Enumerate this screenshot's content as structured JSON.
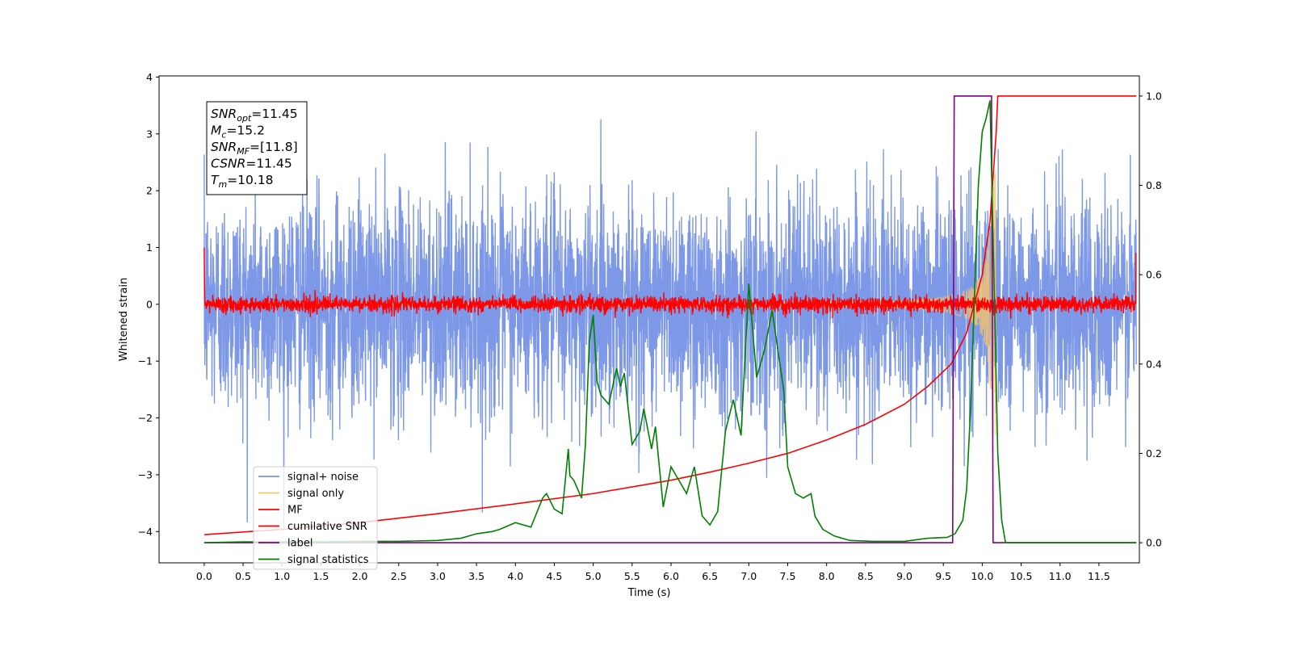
{
  "chart_data": {
    "type": "line",
    "title": "",
    "xlabel": "Time (s)",
    "ylabel": "Whitened strain",
    "xlim": [
      -0.58,
      12.02
    ],
    "ylim": [
      -4.55,
      4.02
    ],
    "y2lim": [
      -0.045,
      1.045
    ],
    "xticks": [
      0.0,
      0.5,
      1.0,
      1.5,
      2.0,
      2.5,
      3.0,
      3.5,
      4.0,
      4.5,
      5.0,
      5.5,
      6.0,
      6.5,
      7.0,
      7.5,
      8.0,
      8.5,
      9.0,
      9.5,
      10.0,
      10.5,
      11.0,
      11.5
    ],
    "xtick_labels": [
      "0.0",
      "0.5",
      "1.0",
      "1.5",
      "2.0",
      "2.5",
      "3.0",
      "3.5",
      "4.0",
      "4.5",
      "5.0",
      "5.5",
      "6.0",
      "6.5",
      "7.0",
      "7.5",
      "8.0",
      "8.5",
      "9.0",
      "9.5",
      "10.0",
      "10.5",
      "11.0",
      "11.5"
    ],
    "yticks": [
      -4,
      -3,
      -2,
      -1,
      0,
      1,
      2,
      3,
      4
    ],
    "ytick_labels": [
      "−4",
      "−3",
      "−2",
      "−1",
      "0",
      "1",
      "2",
      "3",
      "4"
    ],
    "y2ticks": [
      0.0,
      0.2,
      0.4,
      0.6,
      0.8,
      1.0
    ],
    "y2tick_labels": [
      "0.0",
      "0.2",
      "0.4",
      "0.6",
      "0.8",
      "1.0"
    ],
    "grid": false,
    "legend_position": "bottom-left",
    "info_box": [
      {
        "main": "SNR",
        "sub": "opt",
        "value": "=11.45"
      },
      {
        "main": "M",
        "sub": "c",
        "value": "=15.2"
      },
      {
        "main": "SNR",
        "sub": "MF",
        "value": "=[11.8]"
      },
      {
        "main": "CSNR",
        "sub": "",
        "value": "=11.45"
      },
      {
        "main": "T",
        "sub": "m",
        "value": "=10.18"
      }
    ],
    "series": [
      {
        "name": "signal+ noise",
        "axis": "left",
        "color": "#7592e6",
        "description": "noisy whitened strain, approx. range -2.5 to 2.5 with spikes to about +3.5 / -4.1",
        "x_range": [
          0.0,
          11.98
        ],
        "sigma": 1.0
      },
      {
        "name": "signal only",
        "axis": "left",
        "color": "#f5c46a",
        "description": "chirp waveform growing in amplitude, peaking near 10.18 s",
        "x_range": [
          0.0,
          10.2
        ],
        "peak_time": 10.18,
        "peak_amplitude": 2.3
      },
      {
        "name": "MF",
        "axis": "left",
        "color": "#ff0000",
        "description": "matched filter output, noise around 0 with spread about ±0.2",
        "x_range": [
          0.0,
          11.98
        ]
      },
      {
        "name": "cumilative SNR",
        "axis": "right",
        "color": "#ff0000",
        "x": [
          0.0,
          1.0,
          2.0,
          3.0,
          4.0,
          5.0,
          6.0,
          6.5,
          7.0,
          7.5,
          8.0,
          8.5,
          9.0,
          9.3,
          9.6,
          9.8,
          10.0,
          10.1,
          10.18,
          10.2,
          11.98
        ],
        "values": [
          0.018,
          0.03,
          0.045,
          0.065,
          0.087,
          0.11,
          0.14,
          0.158,
          0.178,
          0.2,
          0.23,
          0.265,
          0.31,
          0.35,
          0.4,
          0.47,
          0.6,
          0.72,
          0.92,
          1.0,
          1.0
        ]
      },
      {
        "name": "label",
        "axis": "right",
        "color": "#800080",
        "x": [
          0.0,
          9.62,
          9.64,
          10.12,
          10.14,
          11.98
        ],
        "values": [
          0.0,
          0.0,
          1.0,
          1.0,
          0.0,
          0.0
        ]
      },
      {
        "name": "signal statistics",
        "axis": "right",
        "color": "#008000",
        "x": [
          0.0,
          0.5,
          1.0,
          1.5,
          2.0,
          2.5,
          3.0,
          3.3,
          3.5,
          3.7,
          3.8,
          4.0,
          4.2,
          4.35,
          4.4,
          4.5,
          4.6,
          4.68,
          4.7,
          4.75,
          4.85,
          4.9,
          4.95,
          5.0,
          5.05,
          5.1,
          5.2,
          5.3,
          5.35,
          5.4,
          5.45,
          5.5,
          5.6,
          5.65,
          5.75,
          5.8,
          5.9,
          6.0,
          6.1,
          6.2,
          6.3,
          6.4,
          6.5,
          6.6,
          6.7,
          6.8,
          6.9,
          7.0,
          7.1,
          7.2,
          7.3,
          7.45,
          7.5,
          7.6,
          7.7,
          7.8,
          7.85,
          7.95,
          8.1,
          8.3,
          8.6,
          9.0,
          9.3,
          9.55,
          9.65,
          9.75,
          9.8,
          9.85,
          9.9,
          9.95,
          10.0,
          10.05,
          10.1,
          10.15,
          10.2,
          10.25,
          10.3,
          11.98
        ],
        "values": [
          0.0,
          0.002,
          0.002,
          0.002,
          0.003,
          0.003,
          0.005,
          0.01,
          0.02,
          0.025,
          0.03,
          0.045,
          0.035,
          0.1,
          0.11,
          0.075,
          0.065,
          0.21,
          0.15,
          0.14,
          0.1,
          0.22,
          0.45,
          0.51,
          0.36,
          0.33,
          0.31,
          0.39,
          0.35,
          0.38,
          0.3,
          0.22,
          0.25,
          0.3,
          0.21,
          0.26,
          0.08,
          0.17,
          0.14,
          0.11,
          0.17,
          0.06,
          0.04,
          0.07,
          0.25,
          0.32,
          0.24,
          0.58,
          0.37,
          0.43,
          0.52,
          0.34,
          0.17,
          0.11,
          0.1,
          0.11,
          0.06,
          0.03,
          0.015,
          0.005,
          0.003,
          0.003,
          0.01,
          0.012,
          0.02,
          0.05,
          0.12,
          0.3,
          0.55,
          0.8,
          0.92,
          0.95,
          0.99,
          0.6,
          0.2,
          0.05,
          0.0,
          0.0
        ]
      }
    ]
  }
}
